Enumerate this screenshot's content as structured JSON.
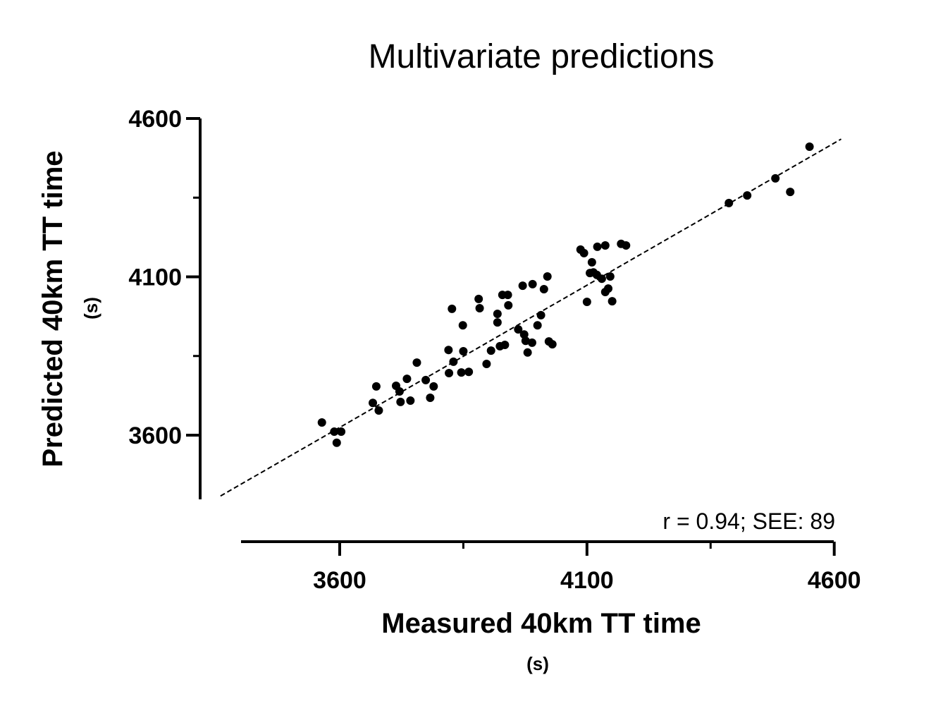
{
  "chart_data": {
    "type": "scatter",
    "title": "Multivariate predictions",
    "xlabel": "Measured 40km TT time",
    "xlabel_unit": "(s)",
    "ylabel": "Predicted 40km TT time",
    "ylabel_unit": "(s)",
    "xlim": [
      3400,
      4600
    ],
    "ylim": [
      3400,
      4600
    ],
    "xticks": [
      "3600",
      "4100",
      "4600"
    ],
    "yticks": [
      "4600",
      "4100",
      "3600"
    ],
    "xtick_values": [
      3600,
      4100,
      4600
    ],
    "ytick_values": [
      4600,
      4100,
      3600
    ],
    "minor_ticks": [
      3850,
      4350
    ],
    "grid": false,
    "annotation": "r = 0.94; SEE: 89",
    "regression_line": {
      "style": "dashed",
      "x": [
        3359,
        4614
      ],
      "y": [
        3408,
        4535
      ]
    },
    "points": [
      [
        3564,
        3640
      ],
      [
        3589,
        3611
      ],
      [
        3603,
        3611
      ],
      [
        3594,
        3576
      ],
      [
        3667,
        3702
      ],
      [
        3674,
        3754
      ],
      [
        3679,
        3678
      ],
      [
        3714,
        3756
      ],
      [
        3721,
        3738
      ],
      [
        3723,
        3705
      ],
      [
        3736,
        3778
      ],
      [
        3743,
        3709
      ],
      [
        3756,
        3829
      ],
      [
        3774,
        3774
      ],
      [
        3783,
        3718
      ],
      [
        3790,
        3754
      ],
      [
        3820,
        3869
      ],
      [
        3821,
        3796
      ],
      [
        3827,
        3999
      ],
      [
        3830,
        3832
      ],
      [
        3846,
        3798
      ],
      [
        3850,
        3865
      ],
      [
        3849,
        3947
      ],
      [
        3861,
        3800
      ],
      [
        3881,
        4030
      ],
      [
        3883,
        4001
      ],
      [
        3897,
        3825
      ],
      [
        3906,
        3867
      ],
      [
        3919,
        3983
      ],
      [
        3919,
        3956
      ],
      [
        3924,
        3881
      ],
      [
        3929,
        4043
      ],
      [
        3934,
        3885
      ],
      [
        3940,
        4043
      ],
      [
        3941,
        4010
      ],
      [
        3961,
        3934
      ],
      [
        3970,
        4072
      ],
      [
        3973,
        3918
      ],
      [
        3976,
        3898
      ],
      [
        3980,
        3861
      ],
      [
        3989,
        3892
      ],
      [
        3990,
        4077
      ],
      [
        4000,
        3947
      ],
      [
        4007,
        3979
      ],
      [
        4013,
        4061
      ],
      [
        4020,
        4101
      ],
      [
        4023,
        3896
      ],
      [
        4030,
        3887
      ],
      [
        4087,
        4186
      ],
      [
        4094,
        4175
      ],
      [
        4100,
        4021
      ],
      [
        4106,
        4112
      ],
      [
        4110,
        4146
      ],
      [
        4113,
        4114
      ],
      [
        4120,
        4106
      ],
      [
        4121,
        4195
      ],
      [
        4130,
        4094
      ],
      [
        4137,
        4199
      ],
      [
        4137,
        4052
      ],
      [
        4143,
        4063
      ],
      [
        4147,
        4101
      ],
      [
        4151,
        4023
      ],
      [
        4169,
        4204
      ],
      [
        4179,
        4199
      ],
      [
        4387,
        4333
      ],
      [
        4424,
        4357
      ],
      [
        4481,
        4411
      ],
      [
        4511,
        4368
      ],
      [
        4550,
        4511
      ]
    ]
  }
}
